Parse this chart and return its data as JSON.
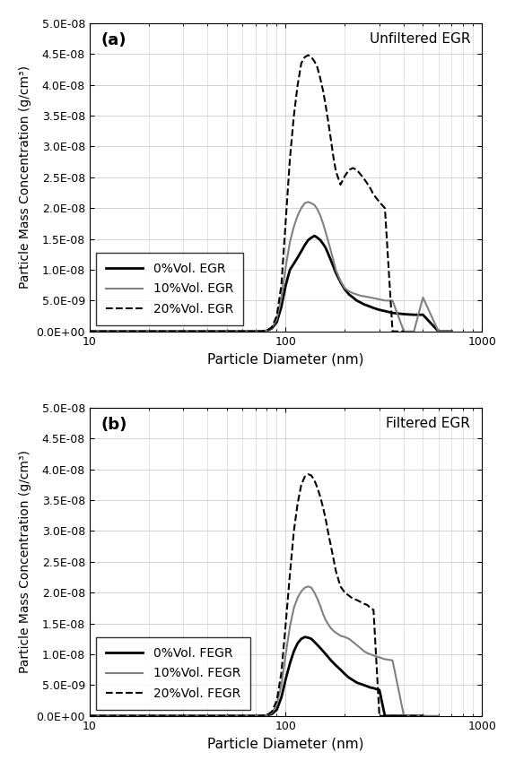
{
  "title_a": "(a)",
  "title_b": "(b)",
  "label_a": "Unfiltered EGR",
  "label_b": "Filtered EGR",
  "xlabel": "Particle Diameter (nm)",
  "ylabel": "Particle Mass Concentration (g/cm³)",
  "ylim": [
    0.0,
    5e-08
  ],
  "xlim": [
    10,
    1000
  ],
  "yticks": [
    0.0,
    5e-09,
    1e-08,
    1.5e-08,
    2e-08,
    2.5e-08,
    3e-08,
    3.5e-08,
    4e-08,
    4.5e-08,
    5e-08
  ],
  "ytick_labels": [
    "0.0E+00",
    "5.0E-09",
    "1.0E-08",
    "1.5E-08",
    "2.0E-08",
    "2.5E-08",
    "3.0E-08",
    "3.5E-08",
    "4.0E-08",
    "4.5E-08",
    "5.0E-08"
  ],
  "legend_a": [
    "0%Vol. EGR",
    "10%Vol. EGR",
    "20%Vol. EGR"
  ],
  "legend_b": [
    "0%Vol. FEGR",
    "10%Vol. FEGR",
    "20%Vol. FEGR"
  ],
  "panel_a": {
    "egr0_x": [
      10,
      15,
      20,
      25,
      30,
      35,
      40,
      45,
      50,
      55,
      60,
      65,
      70,
      75,
      80,
      85,
      90,
      95,
      100,
      105,
      110,
      115,
      120,
      125,
      130,
      135,
      140,
      145,
      150,
      155,
      160,
      165,
      170,
      175,
      180,
      190,
      200,
      210,
      220,
      230,
      240,
      250,
      260,
      270,
      280,
      300,
      320,
      350,
      400,
      450,
      500,
      600,
      700
    ],
    "egr0_y": [
      0,
      0,
      0,
      0,
      0,
      0,
      0,
      0,
      0,
      0,
      0,
      0,
      0,
      1e-11,
      1e-10,
      5e-10,
      1.5e-09,
      4e-09,
      7.5e-09,
      1e-08,
      1.1e-08,
      1.2e-08,
      1.3e-08,
      1.4e-08,
      1.48e-08,
      1.52e-08,
      1.55e-08,
      1.52e-08,
      1.48e-08,
      1.42e-08,
      1.35e-08,
      1.25e-08,
      1.15e-08,
      1.05e-08,
      9.5e-09,
      8e-09,
      6.8e-09,
      6e-09,
      5.5e-09,
      5e-09,
      4.7e-09,
      4.4e-09,
      4.2e-09,
      4e-09,
      3.8e-09,
      3.5e-09,
      3.3e-09,
      3e-09,
      2.8e-09,
      2.7e-09,
      2.7e-09,
      0,
      0
    ],
    "egr10_x": [
      10,
      15,
      20,
      25,
      30,
      35,
      40,
      45,
      50,
      55,
      60,
      65,
      70,
      75,
      80,
      85,
      90,
      95,
      100,
      105,
      110,
      115,
      120,
      125,
      130,
      135,
      140,
      145,
      150,
      155,
      160,
      165,
      170,
      175,
      180,
      190,
      200,
      210,
      220,
      230,
      240,
      250,
      260,
      270,
      280,
      300,
      320,
      350,
      400,
      450,
      500,
      600,
      700
    ],
    "egr10_y": [
      0,
      0,
      0,
      0,
      0,
      0,
      0,
      0,
      0,
      0,
      0,
      0,
      0,
      1e-11,
      1e-10,
      6e-10,
      2e-09,
      5.5e-09,
      1.05e-08,
      1.45e-08,
      1.7e-08,
      1.88e-08,
      2e-08,
      2.08e-08,
      2.1e-08,
      2.08e-08,
      2.05e-08,
      1.98e-08,
      1.88e-08,
      1.75e-08,
      1.6e-08,
      1.45e-08,
      1.3e-08,
      1.15e-08,
      1e-08,
      8.2e-09,
      7e-09,
      6.5e-09,
      6.2e-09,
      6e-09,
      5.8e-09,
      5.7e-09,
      5.6e-09,
      5.5e-09,
      5.4e-09,
      5.2e-09,
      5e-09,
      5e-09,
      0,
      0,
      5.5e-09,
      0,
      0
    ],
    "egr20_x": [
      10,
      15,
      20,
      25,
      30,
      35,
      40,
      45,
      50,
      55,
      60,
      65,
      70,
      75,
      80,
      85,
      90,
      95,
      100,
      105,
      110,
      115,
      120,
      125,
      130,
      135,
      140,
      145,
      150,
      155,
      160,
      165,
      170,
      175,
      180,
      190,
      200,
      210,
      220,
      230,
      240,
      250,
      260,
      270,
      280,
      300,
      320,
      350,
      400
    ],
    "egr20_y": [
      0,
      0,
      0,
      0,
      0,
      0,
      0,
      0,
      0,
      0,
      0,
      0,
      0,
      1e-11,
      1e-10,
      7e-10,
      2.5e-09,
      7.5e-09,
      1.8e-08,
      2.8e-08,
      3.5e-08,
      4e-08,
      4.35e-08,
      4.45e-08,
      4.48e-08,
      4.45e-08,
      4.38e-08,
      4.28e-08,
      4.1e-08,
      3.9e-08,
      3.65e-08,
      3.38e-08,
      3.1e-08,
      2.82e-08,
      2.6e-08,
      2.38e-08,
      2.52e-08,
      2.62e-08,
      2.65e-08,
      2.62e-08,
      2.55e-08,
      2.48e-08,
      2.4e-08,
      2.32e-08,
      2.22e-08,
      2.1e-08,
      2e-08,
      0,
      0
    ]
  },
  "panel_b": {
    "fegr0_x": [
      10,
      15,
      20,
      25,
      30,
      35,
      40,
      45,
      50,
      55,
      60,
      65,
      70,
      75,
      80,
      85,
      90,
      95,
      100,
      105,
      110,
      115,
      120,
      125,
      130,
      135,
      140,
      145,
      150,
      155,
      160,
      165,
      170,
      175,
      180,
      190,
      200,
      210,
      220,
      230,
      240,
      250,
      260,
      270,
      280,
      300,
      320,
      350,
      400,
      450,
      500
    ],
    "fegr0_y": [
      0,
      0,
      0,
      0,
      0,
      0,
      0,
      0,
      0,
      0,
      0,
      0,
      0,
      1e-11,
      8e-11,
      3e-10,
      1e-09,
      3e-09,
      6e-09,
      8.5e-09,
      1.05e-08,
      1.18e-08,
      1.25e-08,
      1.28e-08,
      1.27e-08,
      1.25e-08,
      1.2e-08,
      1.15e-08,
      1.1e-08,
      1.05e-08,
      1e-08,
      9.5e-09,
      9e-09,
      8.6e-09,
      8.2e-09,
      7.5e-09,
      6.8e-09,
      6.2e-09,
      5.8e-09,
      5.4e-09,
      5.2e-09,
      5e-09,
      4.8e-09,
      4.6e-09,
      4.5e-09,
      4.2e-09,
      0,
      0,
      0,
      0,
      0
    ],
    "fegr10_x": [
      10,
      15,
      20,
      25,
      30,
      35,
      40,
      45,
      50,
      55,
      60,
      65,
      70,
      75,
      80,
      85,
      90,
      95,
      100,
      105,
      110,
      115,
      120,
      125,
      130,
      135,
      140,
      145,
      150,
      155,
      160,
      165,
      170,
      175,
      180,
      190,
      200,
      210,
      220,
      230,
      240,
      250,
      260,
      270,
      280,
      300,
      320,
      350,
      400,
      450,
      500,
      600
    ],
    "fegr10_y": [
      0,
      0,
      0,
      0,
      0,
      0,
      0,
      0,
      0,
      0,
      0,
      0,
      0,
      1e-11,
      1e-10,
      5e-10,
      1.8e-09,
      5e-09,
      1e-08,
      1.45e-08,
      1.75e-08,
      1.92e-08,
      2.02e-08,
      2.08e-08,
      2.1e-08,
      2.08e-08,
      2e-08,
      1.9e-08,
      1.78e-08,
      1.65e-08,
      1.55e-08,
      1.48e-08,
      1.42e-08,
      1.38e-08,
      1.35e-08,
      1.3e-08,
      1.28e-08,
      1.25e-08,
      1.2e-08,
      1.15e-08,
      1.1e-08,
      1.05e-08,
      1.02e-08,
      1e-08,
      9.8e-09,
      9.5e-09,
      9.2e-09,
      9e-09,
      0,
      0,
      0,
      0
    ],
    "fegr20_x": [
      10,
      15,
      20,
      25,
      30,
      35,
      40,
      45,
      50,
      55,
      60,
      65,
      70,
      75,
      80,
      85,
      90,
      95,
      100,
      105,
      110,
      115,
      120,
      125,
      130,
      135,
      140,
      145,
      150,
      155,
      160,
      165,
      170,
      175,
      180,
      190,
      200,
      210,
      220,
      230,
      240,
      250,
      260,
      270,
      280,
      300,
      320,
      350,
      400,
      450,
      500
    ],
    "fegr20_y": [
      0,
      0,
      0,
      0,
      0,
      0,
      0,
      0,
      0,
      0,
      0,
      0,
      0,
      1e-11,
      1e-10,
      7e-10,
      2.5e-09,
      7e-09,
      1.5e-08,
      2.3e-08,
      3e-08,
      3.45e-08,
      3.75e-08,
      3.88e-08,
      3.92e-08,
      3.9e-08,
      3.82e-08,
      3.7e-08,
      3.55e-08,
      3.38e-08,
      3.18e-08,
      2.95e-08,
      2.75e-08,
      2.55e-08,
      2.35e-08,
      2.1e-08,
      2e-08,
      1.95e-08,
      1.9e-08,
      1.88e-08,
      1.85e-08,
      1.82e-08,
      1.8e-08,
      1.75e-08,
      1.72e-08,
      0,
      0,
      0,
      0,
      0,
      0
    ]
  }
}
